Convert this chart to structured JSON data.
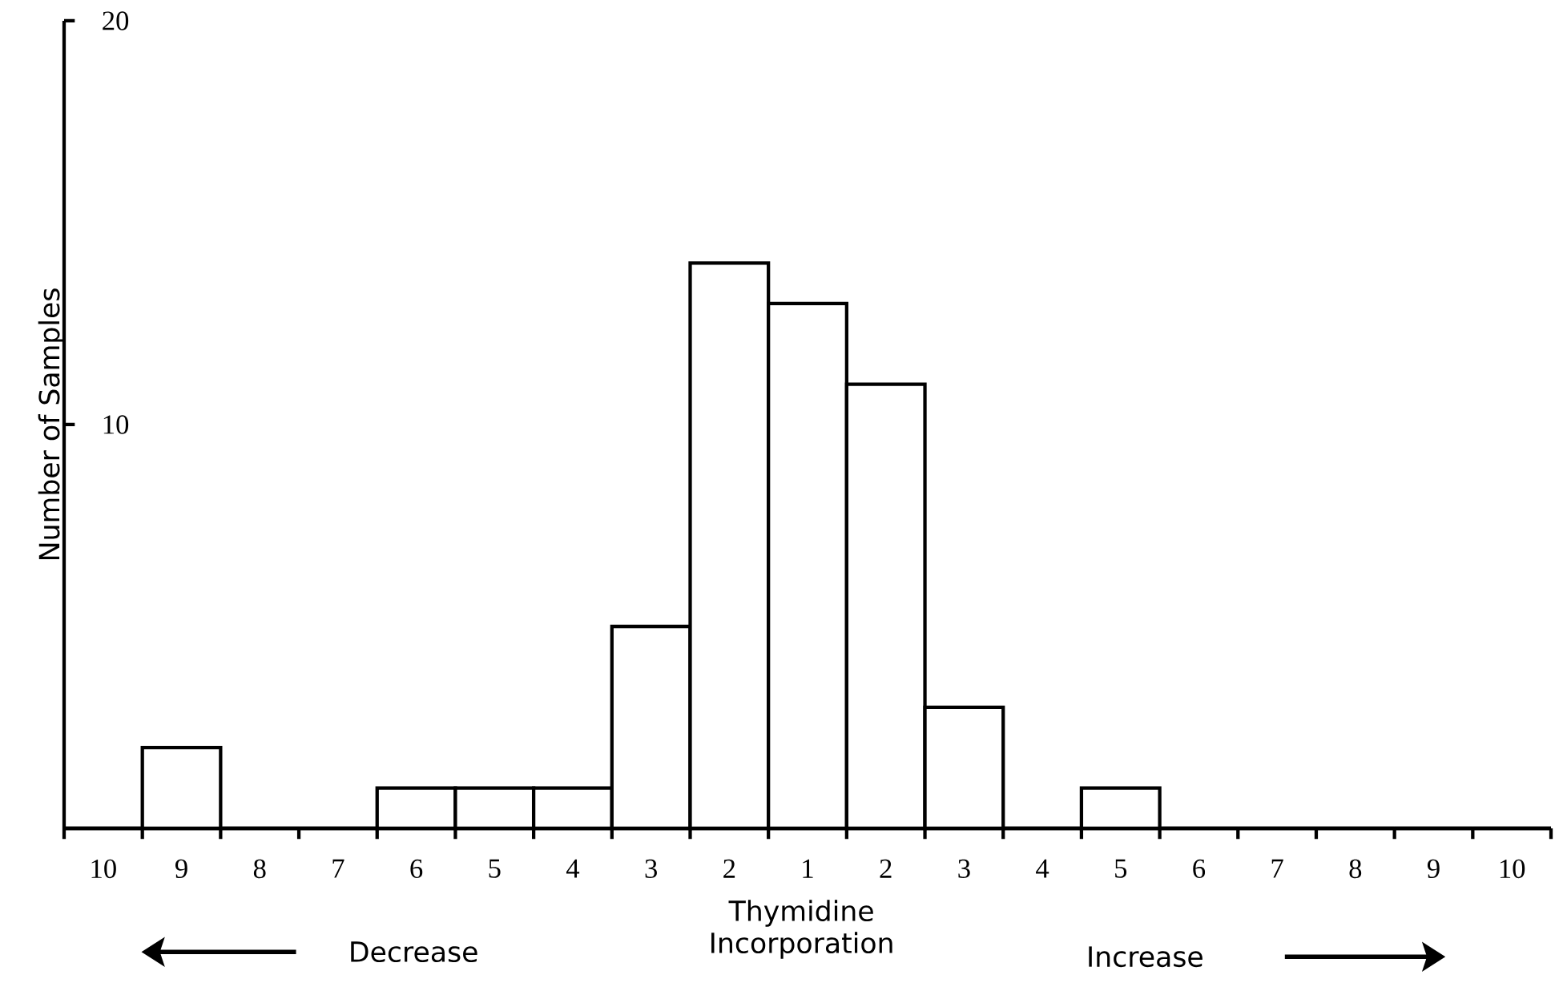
{
  "chart_data": {
    "type": "bar",
    "xlabel": "Thymidine Incorporation",
    "ylabel": "Number of Samples",
    "categories": [
      "10",
      "9",
      "8",
      "7",
      "6",
      "5",
      "4",
      "3",
      "2",
      "1",
      "2",
      "3",
      "4",
      "5",
      "6",
      "7",
      "8",
      "9",
      "10"
    ],
    "values": [
      0,
      2,
      0,
      0,
      1,
      1,
      1,
      5,
      14,
      13,
      11,
      3,
      0,
      1,
      0,
      0,
      0,
      0,
      0
    ],
    "color": "#000000",
    "ylim": [
      0,
      20
    ],
    "yticks": [
      10,
      20
    ],
    "annotations": [
      "Decrease",
      "Increase"
    ]
  }
}
